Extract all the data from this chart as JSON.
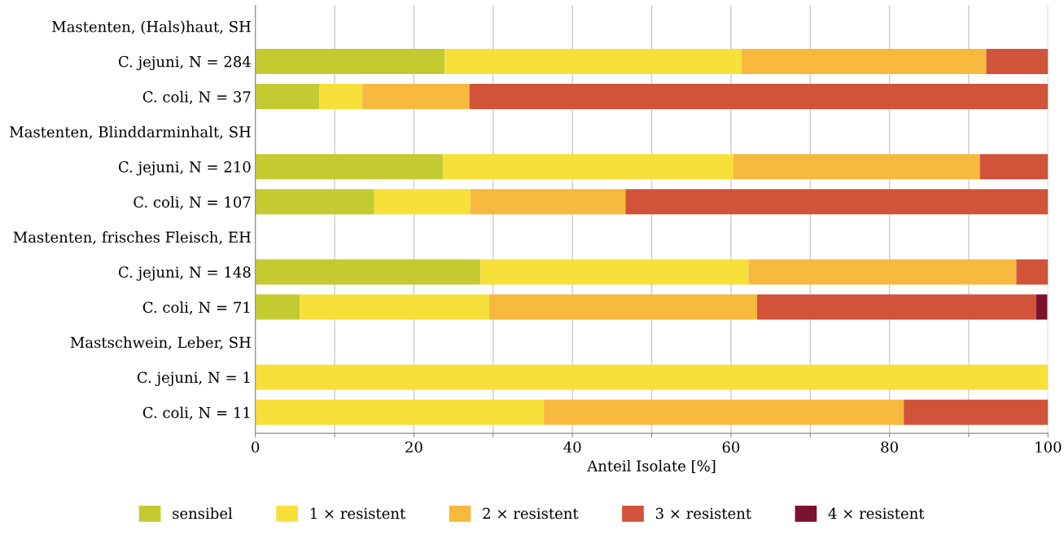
{
  "chart_data": {
    "type": "bar",
    "orientation": "horizontal",
    "stacked": true,
    "categories": [
      "Mastenten, (Hals)haut, SH",
      "C. jejuni, N = 284",
      "C. coli, N = 37",
      "Mastenten, Blinddarminhalt, SH",
      "C. jejuni, N = 210",
      "C. coli, N = 107",
      "Mastenten, frisches Fleisch, EH",
      "C. jejuni, N = 148",
      "C. coli, N = 71",
      "Mastschwein, Leber, SH",
      "C. jejuni, N = 1",
      "C. coli, N = 11"
    ],
    "series": [
      {
        "name": "sensibel",
        "color": "#c3cb30",
        "values": [
          null,
          23.9,
          8.1,
          null,
          23.7,
          15.0,
          null,
          28.4,
          5.6,
          null,
          0,
          0
        ]
      },
      {
        "name": "1 × resistent",
        "color": "#f7e03a",
        "values": [
          null,
          37.4,
          5.4,
          null,
          36.6,
          12.1,
          null,
          33.8,
          23.9,
          null,
          100,
          36.4
        ]
      },
      {
        "name": "2 × resistent",
        "color": "#f6b93e",
        "values": [
          null,
          30.9,
          13.5,
          null,
          31.1,
          19.6,
          null,
          33.8,
          33.8,
          null,
          0,
          45.4
        ]
      },
      {
        "name": "3 × resistent",
        "color": "#d0533a",
        "values": [
          null,
          7.8,
          73.0,
          null,
          8.6,
          53.3,
          null,
          4.0,
          35.2,
          null,
          0,
          18.2
        ]
      },
      {
        "name": "4 × resistent",
        "color": "#7d1130",
        "values": [
          null,
          0,
          0,
          null,
          0,
          0,
          null,
          0,
          1.4,
          null,
          0,
          0
        ]
      }
    ],
    "xlabel": "Anteil Isolate [%]",
    "xlim": [
      0,
      100
    ],
    "xticks": [
      0,
      {
        "value": 10,
        "label": null
      },
      20,
      {
        "value": 30,
        "label": null
      },
      40,
      {
        "value": 50,
        "label": null
      },
      60,
      {
        "value": 70,
        "label": null
      },
      80,
      {
        "value": 90,
        "label": null
      },
      100
    ],
    "grid": "x",
    "legend": "bottom"
  }
}
